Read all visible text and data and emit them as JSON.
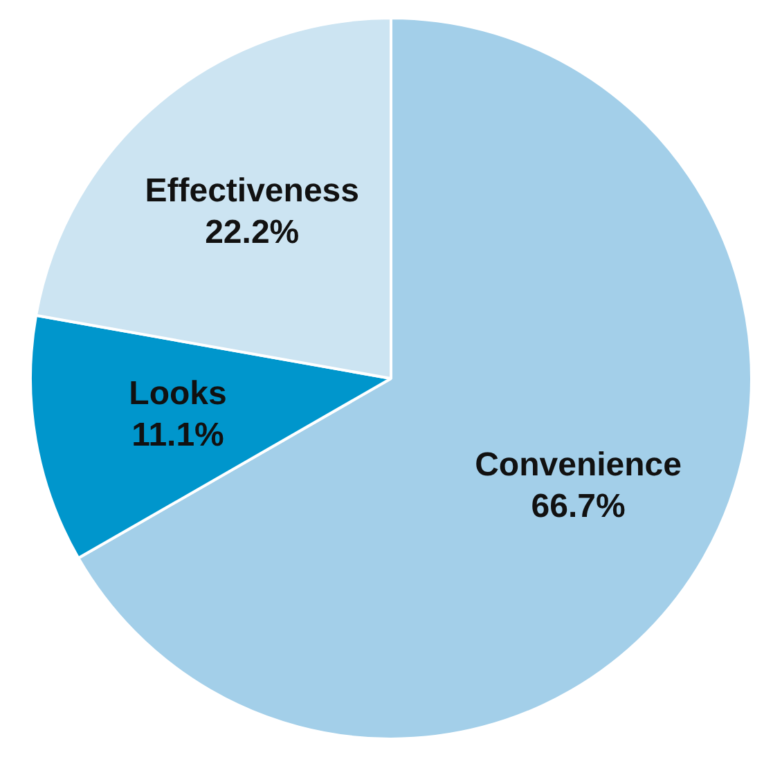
{
  "chart_data": {
    "type": "pie",
    "categories": [
      "Convenience",
      "Looks",
      "Effectiveness"
    ],
    "values": [
      66.7,
      11.1,
      22.2
    ],
    "colors": [
      "#a3cfe9",
      "#0096cc",
      "#cce4f2"
    ],
    "value_labels": [
      "66.7%",
      "11.1%",
      "22.2%"
    ],
    "legend": false
  }
}
